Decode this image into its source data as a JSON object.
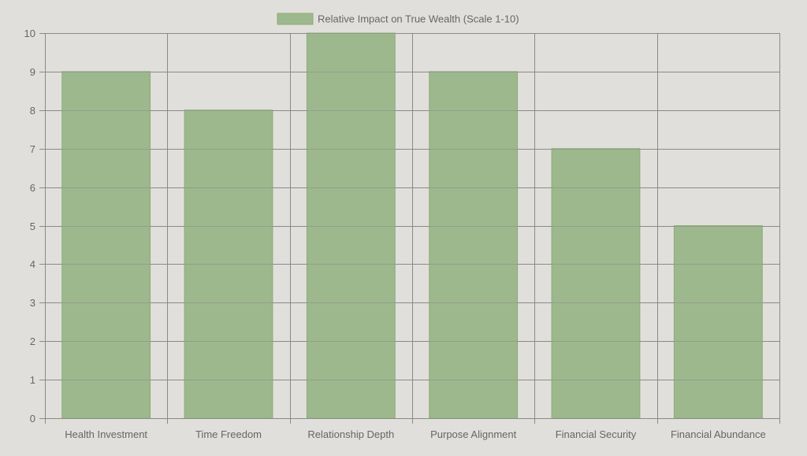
{
  "colors": {
    "background": "#e1dfdb",
    "bar_fill": "#9db88d",
    "bar_stroke": "#8aad78",
    "grid": "#8a8a8a",
    "text": "#666666"
  },
  "chart_data": {
    "type": "bar",
    "categories": [
      "Health Investment",
      "Time Freedom",
      "Relationship Depth",
      "Purpose Alignment",
      "Financial Security",
      "Financial Abundance"
    ],
    "series": [
      {
        "name": "Relative Impact on True Wealth (Scale 1-10)",
        "values": [
          9,
          8,
          10,
          9,
          7,
          5
        ]
      }
    ],
    "ylim": [
      0,
      10
    ],
    "yticks": [
      "0",
      "1",
      "2",
      "3",
      "4",
      "5",
      "6",
      "7",
      "8",
      "9",
      "10"
    ],
    "grid": true,
    "legend_position": "top-center"
  }
}
